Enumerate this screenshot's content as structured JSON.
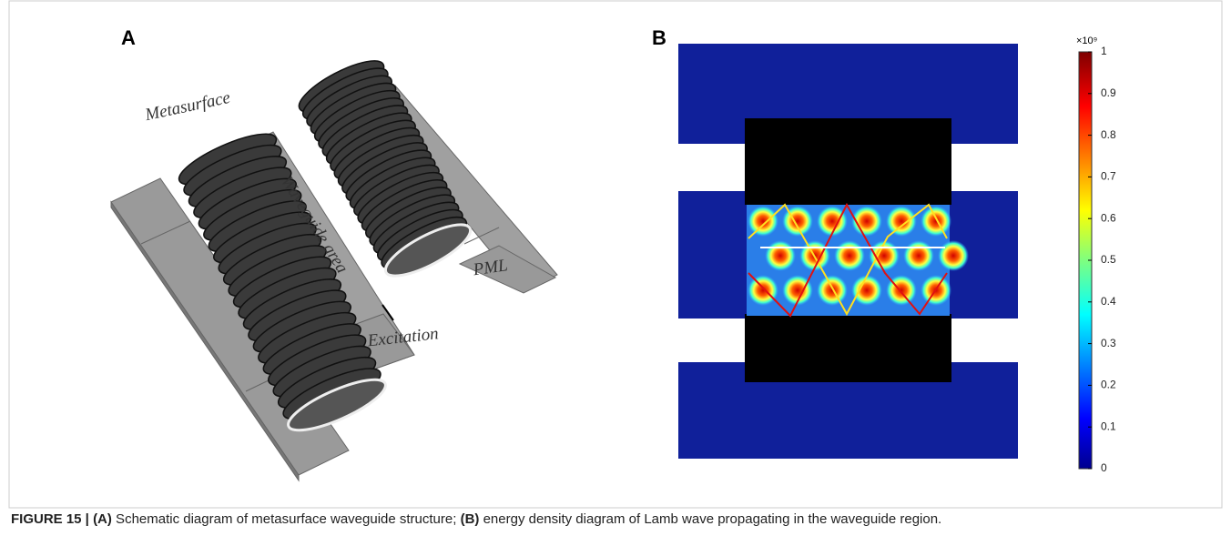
{
  "figure": {
    "panels": [
      {
        "label": "A",
        "annotations": [
          "Metasurface",
          "Waveguide area",
          "PML",
          "Excitation"
        ]
      },
      {
        "label": "B",
        "colorbar": {
          "exponent_label": "×10⁹",
          "lim": [
            0,
            1
          ],
          "ticks": [
            0,
            0.1,
            0.2,
            0.3,
            0.4,
            0.5,
            0.6,
            0.7,
            0.8,
            0.9,
            1
          ]
        }
      }
    ],
    "caption": {
      "label": "FIGURE 15 |",
      "part_a_label": "(A)",
      "part_a_text": " Schematic diagram of metasurface waveguide structure; ",
      "part_b_label": "(B)",
      "part_b_text": " energy density diagram of Lamb wave propagating in the waveguide region."
    }
  }
}
